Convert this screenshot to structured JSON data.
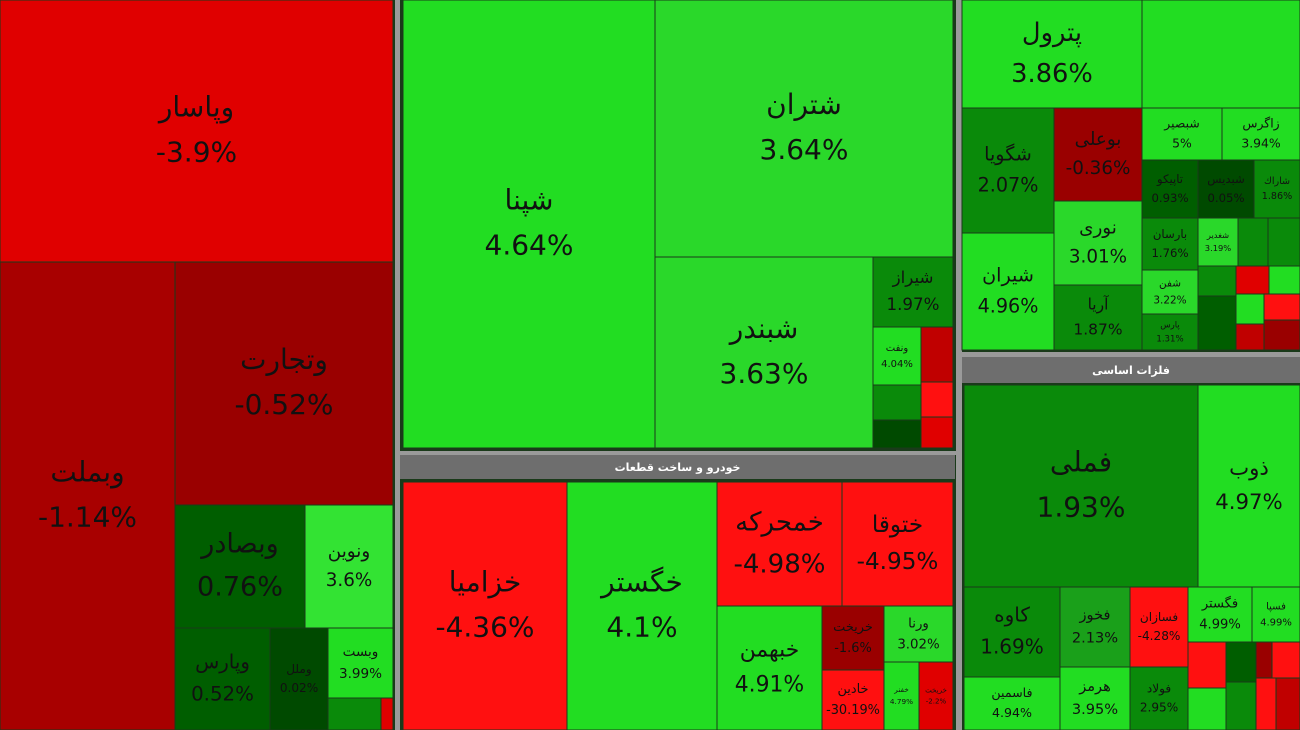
{
  "sections": [
    {
      "tiles": [
        {
          "name": "وپاسار",
          "change": "-3.9%",
          "color": "#e00000"
        },
        {
          "name": "وبملت",
          "change": "-1.14%",
          "color": "#a80000"
        },
        {
          "name": "وتجارت",
          "change": "-0.52%",
          "color": "#9a0000"
        },
        {
          "name": "وبصادر",
          "change": "0.76%",
          "color": "#005e00"
        },
        {
          "name": "ونوين",
          "change": "3.6%",
          "color": "#33e333"
        },
        {
          "name": "وپارس",
          "change": "0.52%",
          "color": "#005e00"
        },
        {
          "name": "وملل",
          "change": "0.02%",
          "color": "#004a00"
        },
        {
          "name": "وبست",
          "change": "3.99%",
          "color": "#22dd22"
        }
      ]
    },
    {
      "tiles": [
        {
          "name": "شپنا",
          "change": "4.64%",
          "color": "#22dd22"
        },
        {
          "name": "شتران",
          "change": "3.64%",
          "color": "#2ad82a"
        },
        {
          "name": "شبندر",
          "change": "3.63%",
          "color": "#2ad82a"
        },
        {
          "name": "شیراز",
          "change": "1.97%",
          "color": "#0a8a0a"
        },
        {
          "name": "ونفت",
          "change": "4.04%",
          "color": "#22dd22"
        }
      ]
    },
    {
      "header": "خودرو و ساخت قطعات",
      "tiles": [
        {
          "name": "خزامیا",
          "change": "-4.36%",
          "color": "#ff1010"
        },
        {
          "name": "خگستر",
          "change": "4.1%",
          "color": "#22dd22"
        },
        {
          "name": "خمحرکه",
          "change": "-4.98%",
          "color": "#ff1010"
        },
        {
          "name": "ختوقا",
          "change": "-4.95%",
          "color": "#ff1010"
        },
        {
          "name": "خبهمن",
          "change": "4.91%",
          "color": "#22dd22"
        },
        {
          "name": "خریخت",
          "change": "-1.6%",
          "color": "#9a0000"
        },
        {
          "name": "ورنا",
          "change": "3.02%",
          "color": "#2ad82a"
        },
        {
          "name": "خادين",
          "change": "-30.19%",
          "color": "#ff1010"
        },
        {
          "name": "خفنر",
          "change": "4.79%",
          "color": "#22dd22"
        },
        {
          "name": "خریخت",
          "change": "-2.2%",
          "color": "#e00000"
        }
      ]
    },
    {
      "tiles": [
        {
          "name": "پترول",
          "change": "3.86%",
          "color": "#22dd22"
        },
        {
          "name": "شگویا",
          "change": "2.07%",
          "color": "#0a8a0a"
        },
        {
          "name": "بوعلی",
          "change": "-0.36%",
          "color": "#9a0000"
        },
        {
          "name": "شبصیر",
          "change": "5%",
          "color": "#22dd22"
        },
        {
          "name": "زاگرس",
          "change": "3.94%",
          "color": "#22dd22"
        },
        {
          "name": "نوری",
          "change": "3.01%",
          "color": "#2ad82a"
        },
        {
          "name": "شیران",
          "change": "4.96%",
          "color": "#22dd22"
        },
        {
          "name": "آریا",
          "change": "1.87%",
          "color": "#0a8a0a"
        },
        {
          "name": "تاپيكو",
          "change": "0.93%",
          "color": "#005e00"
        },
        {
          "name": "شبديس",
          "change": "0.05%",
          "color": "#004a00"
        },
        {
          "name": "شاراك",
          "change": "1.86%",
          "color": "#0a8a0a"
        },
        {
          "name": "بارسان",
          "change": "1.76%",
          "color": "#0a8a0a"
        },
        {
          "name": "شغدير",
          "change": "3.19%",
          "color": "#2ad82a"
        },
        {
          "name": "شفن",
          "change": "3.22%",
          "color": "#2ad82a"
        },
        {
          "name": "پارس",
          "change": "1.31%",
          "color": "#0a8a0a"
        }
      ]
    },
    {
      "header": "فلزات اساسی",
      "tiles": [
        {
          "name": "فملی",
          "change": "1.93%",
          "color": "#0a8a0a"
        },
        {
          "name": "ذوب",
          "change": "4.97%",
          "color": "#22dd22"
        },
        {
          "name": "کاوه",
          "change": "1.69%",
          "color": "#0a8a0a"
        },
        {
          "name": "فخوز",
          "change": "2.13%",
          "color": "#1aa01a"
        },
        {
          "name": "فسازان",
          "change": "-4.28%",
          "color": "#ff1010"
        },
        {
          "name": "فگستر",
          "change": "4.99%",
          "color": "#22dd22"
        },
        {
          "name": "فسپا",
          "change": "4.99%",
          "color": "#22dd22"
        },
        {
          "name": "فاسمین",
          "change": "4.94%",
          "color": "#22dd22"
        },
        {
          "name": "هرمز",
          "change": "3.95%",
          "color": "#22dd22"
        },
        {
          "name": "فولاد",
          "change": "2.95%",
          "color": "#0a8a0a"
        }
      ]
    }
  ]
}
